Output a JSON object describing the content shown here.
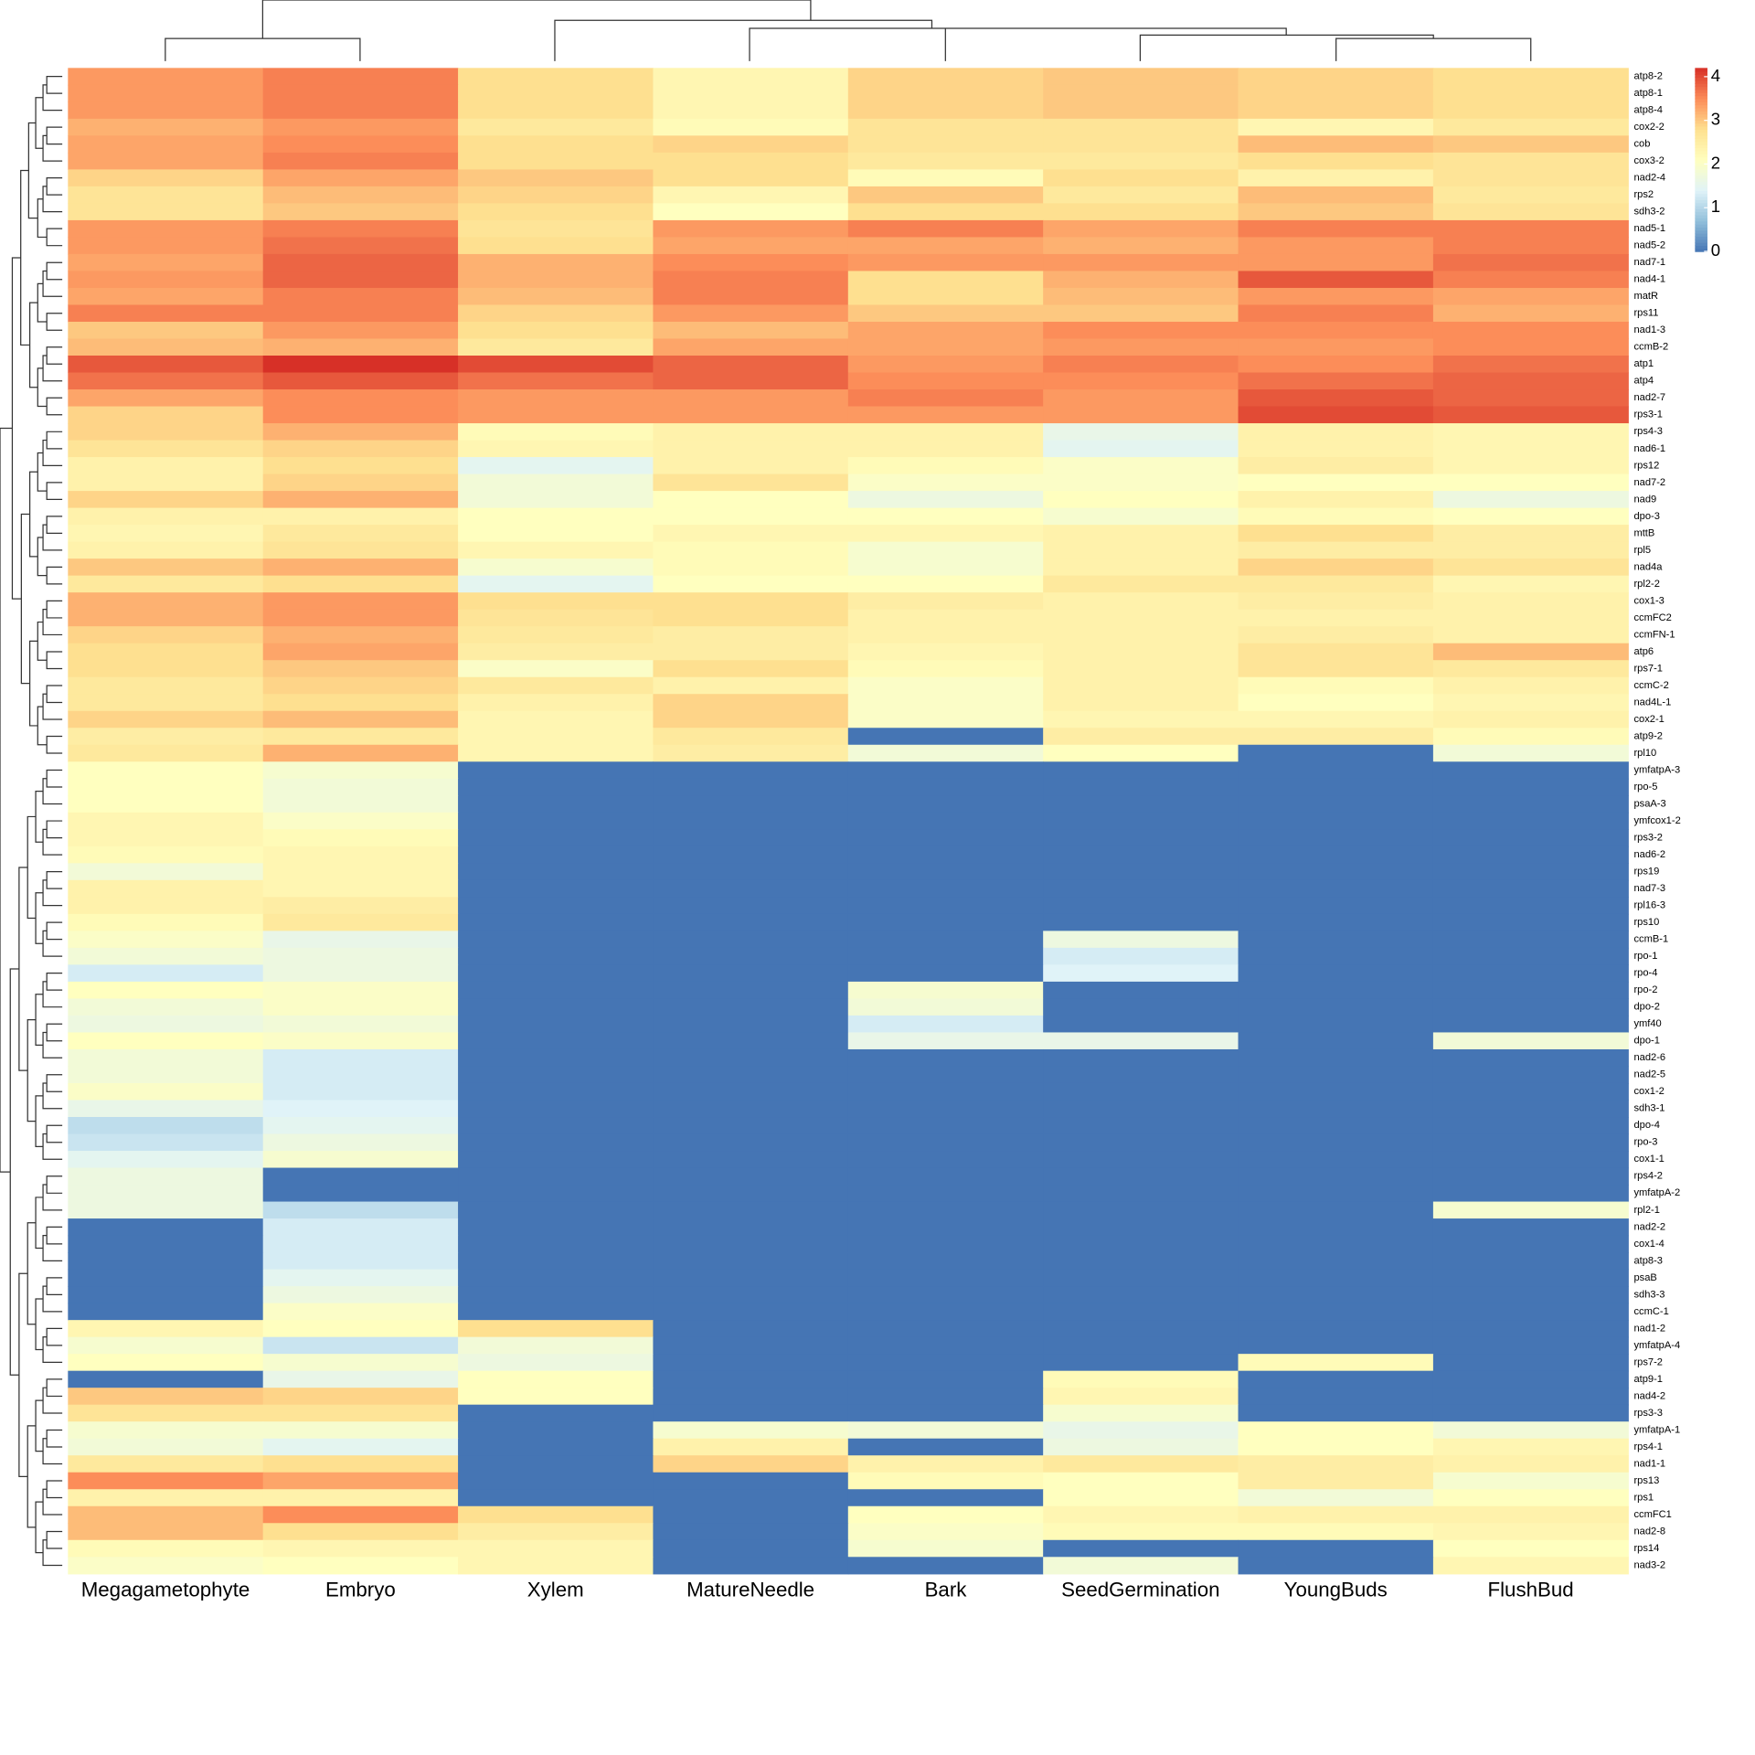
{
  "chart_data": {
    "type": "heatmap",
    "columns": [
      "Megagametophyte",
      "Embryo",
      "Xylem",
      "MatureNeedle",
      "Bark",
      "SeedGermination",
      "YoungBuds",
      "FlushBud"
    ],
    "rows": [
      "atp8-2",
      "atp8-1",
      "atp8-4",
      "cox2-2",
      "cob",
      "cox3-2",
      "nad2-4",
      "rps2",
      "sdh3-2",
      "nad5-1",
      "nad5-2",
      "nad7-1",
      "nad4-1",
      "matR",
      "rps11",
      "nad1-3",
      "ccmB-2",
      "atp1",
      "atp4",
      "nad2-7",
      "rps3-1",
      "rps4-3",
      "nad6-1",
      "rps12",
      "nad7-2",
      "nad9",
      "dpo-3",
      "mttB",
      "rpl5",
      "nad4a",
      "rpl2-2",
      "cox1-3",
      "ccmFC2",
      "ccmFN-1",
      "atp6",
      "rps7-1",
      "ccmC-2",
      "nad4L-1",
      "cox2-1",
      "atp9-2",
      "rpl10",
      "ymfatpA-3",
      "rpo-5",
      "psaA-3",
      "ymfcox1-2",
      "rps3-2",
      "nad6-2",
      "rps19",
      "nad7-3",
      "rpl16-3",
      "rps10",
      "ccmB-1",
      "rpo-1",
      "rpo-4",
      "rpo-2",
      "dpo-2",
      "ymf40",
      "dpo-1",
      "nad2-6",
      "nad2-5",
      "cox1-2",
      "sdh3-1",
      "dpo-4",
      "rpo-3",
      "cox1-1",
      "rps4-2",
      "ymfatpA-2",
      "rpl2-1",
      "nad2-2",
      "cox1-4",
      "atp8-3",
      "psaB",
      "sdh3-3",
      "ccmC-1",
      "nad1-2",
      "ymfatpA-4",
      "rps7-2",
      "atp9-1",
      "nad4-2",
      "rps3-3",
      "ymfatpA-1",
      "rps4-1",
      "nad1-1",
      "rps13",
      "rps1",
      "ccmFC1",
      "nad2-8",
      "rps14",
      "nad3-2"
    ],
    "values": [
      [
        3.4,
        3.6,
        2.8,
        2.3,
        2.9,
        3.0,
        2.9,
        2.8
      ],
      [
        3.4,
        3.6,
        2.8,
        2.3,
        2.9,
        3.0,
        2.9,
        2.8
      ],
      [
        3.4,
        3.6,
        2.8,
        2.3,
        2.9,
        3.0,
        2.9,
        2.8
      ],
      [
        3.2,
        3.4,
        2.6,
        2.2,
        2.7,
        2.7,
        2.3,
        2.6
      ],
      [
        3.3,
        3.5,
        2.8,
        2.9,
        2.7,
        2.7,
        3.1,
        3.0
      ],
      [
        3.3,
        3.6,
        2.8,
        2.8,
        2.6,
        2.6,
        2.8,
        2.7
      ],
      [
        2.9,
        3.3,
        3.0,
        2.8,
        2.2,
        2.8,
        2.4,
        2.7
      ],
      [
        2.7,
        3.1,
        2.9,
        2.3,
        3.0,
        2.6,
        3.1,
        2.6
      ],
      [
        2.7,
        3.0,
        2.8,
        2.1,
        2.8,
        2.8,
        3.0,
        2.7
      ],
      [
        3.4,
        3.6,
        2.7,
        3.4,
        3.6,
        3.3,
        3.6,
        3.6
      ],
      [
        3.4,
        3.7,
        2.8,
        3.3,
        3.3,
        3.2,
        3.4,
        3.6
      ],
      [
        3.3,
        3.8,
        3.2,
        3.5,
        3.4,
        3.4,
        3.4,
        3.7
      ],
      [
        3.4,
        3.8,
        3.2,
        3.6,
        2.8,
        3.2,
        3.9,
        3.6
      ],
      [
        3.3,
        3.6,
        3.1,
        3.6,
        2.8,
        3.1,
        3.4,
        3.3
      ],
      [
        3.6,
        3.6,
        2.9,
        3.4,
        3.0,
        3.0,
        3.6,
        3.2
      ],
      [
        3.0,
        3.4,
        2.8,
        3.1,
        3.3,
        3.5,
        3.5,
        3.5
      ],
      [
        3.1,
        3.2,
        2.6,
        3.3,
        3.3,
        3.4,
        3.4,
        3.5
      ],
      [
        3.9,
        4.2,
        4.0,
        3.8,
        3.4,
        3.6,
        3.5,
        3.7
      ],
      [
        3.7,
        3.9,
        3.7,
        3.8,
        3.5,
        3.5,
        3.7,
        3.8
      ],
      [
        3.3,
        3.5,
        3.4,
        3.4,
        3.6,
        3.4,
        3.9,
        3.8
      ],
      [
        2.9,
        3.5,
        3.4,
        3.4,
        3.4,
        3.4,
        4.0,
        3.9
      ],
      [
        2.9,
        3.2,
        2.2,
        2.4,
        2.4,
        1.6,
        2.4,
        2.3
      ],
      [
        2.7,
        2.9,
        2.3,
        2.4,
        2.4,
        1.5,
        2.4,
        2.3
      ],
      [
        2.4,
        2.8,
        1.5,
        2.4,
        2.2,
        2.0,
        2.5,
        2.3
      ],
      [
        2.4,
        2.9,
        1.8,
        2.7,
        2.0,
        2.0,
        2.1,
        2.1
      ],
      [
        2.9,
        3.2,
        1.8,
        2.1,
        1.7,
        2.1,
        2.4,
        1.7
      ],
      [
        2.4,
        2.4,
        2.1,
        2.1,
        2.1,
        1.9,
        2.2,
        2.1
      ],
      [
        2.3,
        2.6,
        2.1,
        2.3,
        2.3,
        2.4,
        2.8,
        2.5
      ],
      [
        2.4,
        2.7,
        2.3,
        2.2,
        1.9,
        2.4,
        2.5,
        2.5
      ],
      [
        3.0,
        3.2,
        1.9,
        2.2,
        1.9,
        2.4,
        2.9,
        2.7
      ],
      [
        2.6,
        2.8,
        1.5,
        2.1,
        2.1,
        2.6,
        2.6,
        2.3
      ],
      [
        3.2,
        3.4,
        2.8,
        2.8,
        2.5,
        2.4,
        2.5,
        2.4
      ],
      [
        3.2,
        3.4,
        2.7,
        2.8,
        2.4,
        2.4,
        2.4,
        2.4
      ],
      [
        2.9,
        3.2,
        2.6,
        2.5,
        2.4,
        2.4,
        2.5,
        2.4
      ],
      [
        2.8,
        3.3,
        2.5,
        2.5,
        2.3,
        2.4,
        2.7,
        3.1
      ],
      [
        2.8,
        3.0,
        2.0,
        2.8,
        2.2,
        2.4,
        2.7,
        2.6
      ],
      [
        2.6,
        2.9,
        2.6,
        2.4,
        2.0,
        2.4,
        2.2,
        2.4
      ],
      [
        2.6,
        2.8,
        2.4,
        2.9,
        2.0,
        2.4,
        2.1,
        2.3
      ],
      [
        2.9,
        3.1,
        2.3,
        2.9,
        2.0,
        2.3,
        2.3,
        2.4
      ],
      [
        2.5,
        2.6,
        2.3,
        2.6,
        0,
        2.5,
        2.5,
        2.2
      ],
      [
        2.6,
        3.2,
        2.3,
        2.5,
        1.8,
        2.1,
        0,
        1.8
      ],
      [
        2.1,
        1.9,
        0,
        0,
        0,
        0,
        0,
        0
      ],
      [
        2.1,
        1.8,
        0,
        0,
        0,
        0,
        0,
        0
      ],
      [
        2.1,
        1.8,
        0,
        0,
        0,
        0,
        0,
        0
      ],
      [
        2.3,
        2.0,
        0,
        0,
        0,
        0,
        0,
        0
      ],
      [
        2.3,
        2.2,
        0,
        0,
        0,
        0,
        0,
        0
      ],
      [
        2.2,
        2.3,
        0,
        0,
        0,
        0,
        0,
        0
      ],
      [
        1.8,
        2.3,
        0,
        0,
        0,
        0,
        0,
        0
      ],
      [
        2.4,
        2.3,
        0,
        0,
        0,
        0,
        0,
        0
      ],
      [
        2.4,
        2.5,
        0,
        0,
        0,
        0,
        0,
        0
      ],
      [
        2.2,
        2.6,
        0,
        0,
        0,
        0,
        0,
        0
      ],
      [
        2.0,
        1.6,
        0,
        0,
        0,
        1.7,
        0,
        0
      ],
      [
        1.8,
        1.7,
        0,
        0,
        0,
        1.3,
        0,
        0
      ],
      [
        1.3,
        1.7,
        0,
        0,
        0,
        1.4,
        0,
        0
      ],
      [
        2.1,
        2.0,
        0,
        0,
        1.9,
        0,
        0,
        0
      ],
      [
        1.8,
        2.0,
        0,
        0,
        1.8,
        0,
        0,
        0
      ],
      [
        1.7,
        1.8,
        0,
        0,
        1.3,
        0,
        0,
        0
      ],
      [
        2.1,
        2.0,
        0,
        0,
        1.6,
        1.6,
        0,
        1.8
      ],
      [
        1.8,
        1.3,
        0,
        0,
        0,
        0,
        0,
        0
      ],
      [
        1.8,
        1.3,
        0,
        0,
        0,
        0,
        0,
        0
      ],
      [
        2.0,
        1.3,
        0,
        0,
        0,
        0,
        0,
        0
      ],
      [
        1.6,
        1.4,
        0,
        0,
        0,
        0,
        0,
        0
      ],
      [
        1.1,
        1.5,
        0,
        0,
        0,
        0,
        0,
        0
      ],
      [
        1.2,
        1.7,
        0,
        0,
        0,
        0,
        0,
        0
      ],
      [
        1.5,
        1.9,
        0,
        0,
        0,
        0,
        0,
        0
      ],
      [
        1.7,
        0,
        0,
        0,
        0,
        0,
        0,
        0
      ],
      [
        1.7,
        0,
        0,
        0,
        0,
        0,
        0,
        0
      ],
      [
        1.7,
        1.1,
        0,
        0,
        0,
        0,
        0,
        1.9
      ],
      [
        0,
        1.3,
        0,
        0,
        0,
        0,
        0,
        0
      ],
      [
        0,
        1.3,
        0,
        0,
        0,
        0,
        0,
        0
      ],
      [
        0,
        1.3,
        0,
        0,
        0,
        0,
        0,
        0
      ],
      [
        0,
        1.5,
        0,
        0,
        0,
        0,
        0,
        0
      ],
      [
        0,
        1.7,
        0,
        0,
        0,
        0,
        0,
        0
      ],
      [
        0,
        2.0,
        0,
        0,
        0,
        0,
        0,
        0
      ],
      [
        2.3,
        2.1,
        2.8,
        0,
        0,
        0,
        0,
        0
      ],
      [
        1.9,
        1.2,
        1.8,
        0,
        0,
        0,
        0,
        0
      ],
      [
        2.1,
        1.9,
        1.7,
        0,
        0,
        0,
        2.2,
        0
      ],
      [
        0,
        1.6,
        2.1,
        0,
        0,
        2.2,
        0,
        0
      ],
      [
        3.0,
        2.9,
        2.1,
        0,
        0,
        2.3,
        0,
        0
      ],
      [
        2.7,
        2.7,
        0,
        0,
        0,
        1.9,
        0,
        0
      ],
      [
        1.9,
        1.9,
        0,
        1.9,
        1.8,
        1.6,
        2.1,
        1.8
      ],
      [
        1.8,
        1.5,
        0,
        2.4,
        0,
        1.7,
        2.1,
        2.3
      ],
      [
        2.6,
        2.8,
        0,
        2.9,
        2.4,
        2.6,
        2.5,
        2.4
      ],
      [
        3.5,
        3.3,
        0,
        0,
        2.2,
        2.1,
        2.5,
        1.9
      ],
      [
        2.4,
        2.4,
        0,
        0,
        0,
        2.1,
        1.8,
        2.1
      ],
      [
        3.1,
        3.5,
        2.8,
        0,
        2.1,
        2.3,
        2.4,
        2.4
      ],
      [
        3.1,
        2.8,
        2.5,
        0,
        2.0,
        2.2,
        2.2,
        2.3
      ],
      [
        2.2,
        2.3,
        2.3,
        0,
        1.9,
        0,
        0,
        2.1
      ],
      [
        2.0,
        2.1,
        2.3,
        0,
        0,
        1.8,
        0,
        2.3
      ]
    ],
    "zlim": [
      0,
      4.2
    ],
    "zticks": [
      0,
      1,
      2,
      3,
      4
    ],
    "colors": [
      "#4575b4",
      "#91bfdb",
      "#e0f3f8",
      "#ffffbf",
      "#fee090",
      "#fc8d59",
      "#d73027"
    ]
  }
}
